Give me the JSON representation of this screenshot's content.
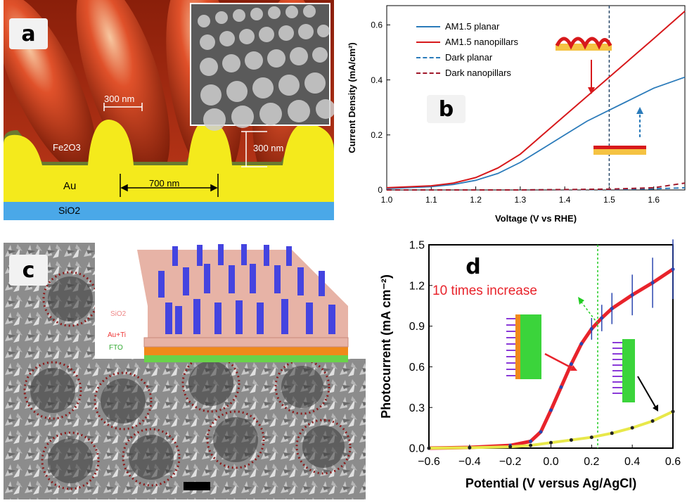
{
  "figure": {
    "panel_a": {
      "letter": "a",
      "dim_period": "300 nm",
      "dim_height": "300 nm",
      "dim_pitch": "700 nm",
      "layer_fe2o3": "Fe2O3",
      "layer_au": "Au",
      "layer_sio2": "SiO2"
    },
    "panel_b": {
      "letter": "b",
      "legend": [
        "AM1.5 planar",
        "AM1.5 nanopillars",
        "Dark planar",
        "Dark nanopillars"
      ],
      "colors": {
        "planar": "#2b7bba",
        "nanopillars": "#d7191c"
      }
    },
    "panel_c": {
      "letter": "c",
      "inset_labels": [
        "SiO2",
        "Au+Ti",
        "FTO"
      ]
    },
    "panel_d": {
      "letter": "d",
      "annotation": "10 times increase",
      "colors": {
        "nanopillars": "#e8232b",
        "planar": "#e8e84a",
        "errorbar": "#2a46b0"
      }
    }
  },
  "chart_data": [
    {
      "type": "line",
      "panel": "b",
      "xlabel": "Voltage (V vs RHE)",
      "ylabel": "Current Density (mA/cm²)",
      "xlim": [
        1.0,
        1.67
      ],
      "ylim": [
        0,
        0.67
      ],
      "xticks": [
        "1.0",
        "1.1",
        "1.2",
        "1.3",
        "1.4",
        "1.5",
        "1.6"
      ],
      "yticks": [
        "0",
        "0.2",
        "0.4",
        "0.6"
      ],
      "vline": 1.5,
      "series": [
        {
          "name": "AM1.5 planar",
          "style": "solid",
          "color": "#2b7bba",
          "x": [
            1.0,
            1.1,
            1.15,
            1.2,
            1.25,
            1.3,
            1.35,
            1.4,
            1.45,
            1.5,
            1.55,
            1.6,
            1.67
          ],
          "y": [
            0.005,
            0.012,
            0.02,
            0.035,
            0.06,
            0.1,
            0.15,
            0.2,
            0.25,
            0.29,
            0.33,
            0.37,
            0.41
          ]
        },
        {
          "name": "AM1.5 nanopillars",
          "style": "solid",
          "color": "#d7191c",
          "x": [
            1.0,
            1.1,
            1.15,
            1.2,
            1.25,
            1.3,
            1.35,
            1.4,
            1.45,
            1.5,
            1.55,
            1.6,
            1.67
          ],
          "y": [
            0.008,
            0.015,
            0.025,
            0.045,
            0.08,
            0.13,
            0.2,
            0.27,
            0.34,
            0.41,
            0.48,
            0.55,
            0.65
          ]
        },
        {
          "name": "Dark planar",
          "style": "dashed",
          "color": "#2b7bba",
          "x": [
            1.0,
            1.3,
            1.5,
            1.6,
            1.67
          ],
          "y": [
            0,
            0,
            0.002,
            0.004,
            0.008
          ]
        },
        {
          "name": "Dark nanopillars",
          "style": "dashed",
          "color": "#a0182a",
          "x": [
            1.0,
            1.3,
            1.5,
            1.6,
            1.67
          ],
          "y": [
            0,
            0,
            0.003,
            0.008,
            0.025
          ]
        }
      ]
    },
    {
      "type": "line",
      "panel": "d",
      "xlabel": "Potential (V versus Ag/AgCl)",
      "ylabel": "Photocurrent (mA cm⁻²)",
      "xlim": [
        -0.6,
        0.6
      ],
      "ylim": [
        0,
        1.5
      ],
      "xticks": [
        "−0.6",
        "−0.4",
        "−0.2",
        "0.0",
        "0.2",
        "0.4",
        "0.6"
      ],
      "yticks": [
        "0.0",
        "0.3",
        "0.6",
        "0.9",
        "1.2",
        "1.5"
      ],
      "vline": 0.23,
      "series": [
        {
          "name": "nanopillars",
          "color": "#e8232b",
          "x": [
            -0.6,
            -0.4,
            -0.2,
            -0.1,
            -0.05,
            0.0,
            0.05,
            0.1,
            0.15,
            0.2,
            0.25,
            0.3,
            0.4,
            0.5,
            0.6
          ],
          "y": [
            0.0,
            0.005,
            0.02,
            0.05,
            0.12,
            0.28,
            0.45,
            0.62,
            0.77,
            0.88,
            0.96,
            1.03,
            1.13,
            1.22,
            1.32
          ]
        },
        {
          "name": "planar",
          "color": "#e8e84a",
          "x": [
            -0.6,
            -0.4,
            -0.2,
            -0.1,
            0.0,
            0.1,
            0.2,
            0.3,
            0.4,
            0.5,
            0.6
          ],
          "y": [
            0.0,
            0.003,
            0.01,
            0.02,
            0.04,
            0.06,
            0.08,
            0.11,
            0.15,
            0.2,
            0.27
          ]
        }
      ]
    }
  ]
}
